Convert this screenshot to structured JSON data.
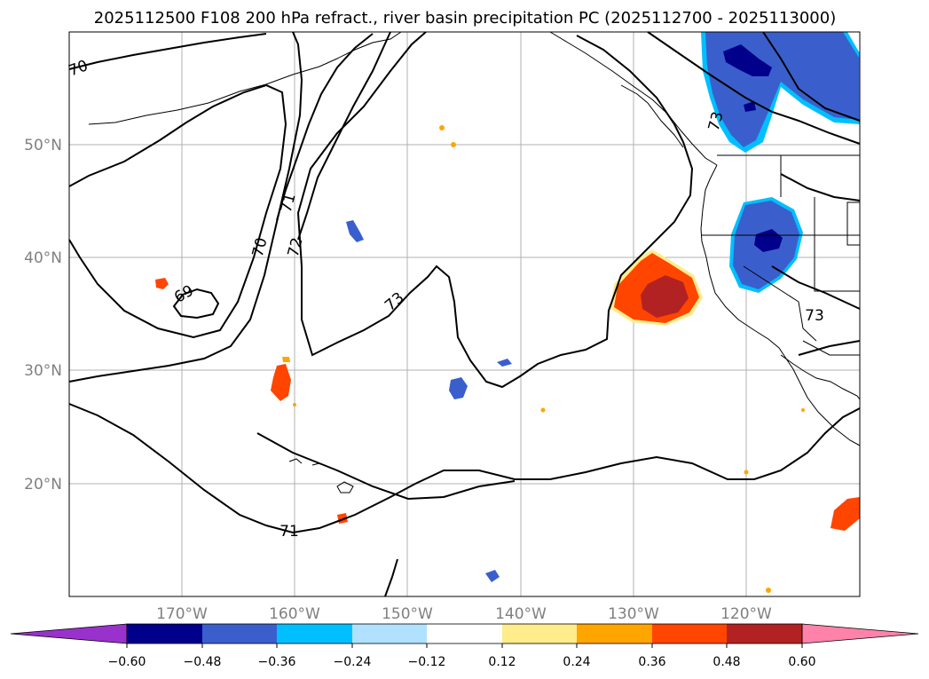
{
  "title": "2025112500 F108 200 hPa refract., river basin precipitation PC (2025112700 - 2025113000)",
  "map": {
    "lon_labels": [
      "170°W",
      "160°W",
      "150°W",
      "140°W",
      "130°W",
      "120°W"
    ],
    "lat_labels": [
      "50°N",
      "40°N",
      "30°N",
      "20°N"
    ],
    "contour_labels": [
      "70",
      "71",
      "72",
      "70",
      "69",
      "73",
      "71",
      "73",
      "73"
    ]
  },
  "colorbar": {
    "ticks": [
      "−0.60",
      "−0.48",
      "−0.36",
      "−0.24",
      "−0.12",
      "0.12",
      "0.24",
      "0.36",
      "0.48",
      "0.60"
    ],
    "colors": {
      "under": "#9932cc",
      "bins": [
        "#00008b",
        "#3a5fcd",
        "#00bfff",
        "#b0e2ff",
        "#ffffff",
        "#ffec8b",
        "#ffa500",
        "#ff4500",
        "#b22222"
      ],
      "over": "#ff82ab"
    }
  },
  "colors": {
    "neg_dark": "#00008b",
    "neg_mid": "#3a5fcd",
    "neg_light": "#00bfff",
    "neg_pale": "#b0e2ff",
    "pos_pale": "#ffec8b",
    "pos_orange": "#ffa500",
    "pos_red": "#ff4500",
    "pos_dark": "#b22222"
  }
}
